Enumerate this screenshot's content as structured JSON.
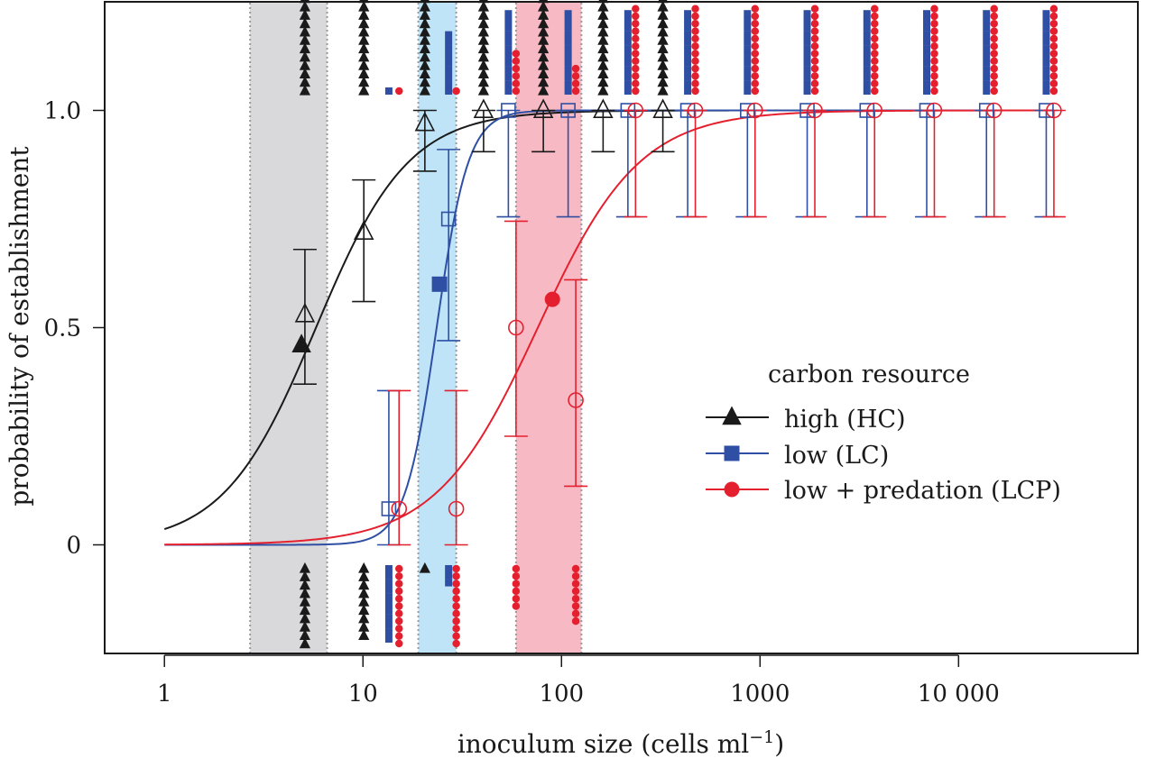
{
  "chart_data": {
    "type": "scatter",
    "xlabel": "inoculum size (cells ml",
    "xlabel_sup": "−1",
    "xlabel_close": ")",
    "ylabel": "probability of establishment",
    "x_scale": "log",
    "xlim": [
      0.5,
      80000
    ],
    "ylim": [
      -0.25,
      1.25
    ],
    "x_ticks": [
      1,
      10,
      100,
      1000,
      10000
    ],
    "x_tick_labels": [
      "1",
      "10",
      "100",
      "1000",
      "10 000"
    ],
    "y_ticks": [
      0,
      0.5,
      1.0
    ],
    "y_tick_labels": [
      "0",
      "0.5",
      "1.0"
    ],
    "grid": false,
    "legend": {
      "title": "carbon resource",
      "placement": "center-right",
      "entries": [
        {
          "key": "HC",
          "label": "high (HC)"
        },
        {
          "key": "LC",
          "label": "low (LC)"
        },
        {
          "key": "LCP",
          "label": "low + predation (LCP)"
        }
      ]
    },
    "series_style": {
      "HC": {
        "color": "#1a1a1a",
        "marker": "triangle"
      },
      "LC": {
        "color": "#2e4fa3",
        "marker": "square"
      },
      "LCP": {
        "color": "#e5202e",
        "marker": "circle"
      }
    },
    "bands": [
      {
        "series": "HC",
        "x_range": [
          2.7,
          6.6
        ],
        "color": "#d9d9db"
      },
      {
        "series": "LC",
        "x_range": [
          19,
          29.5
        ],
        "color": "#bfe4f7"
      },
      {
        "series": "LCP",
        "x_range": [
          59,
          126
        ],
        "color": "#f7b9c3"
      }
    ],
    "series": [
      {
        "key": "HC",
        "curve": {
          "midpoint": 5.8,
          "slope": 4.3
        },
        "ed50": {
          "x": 4.9,
          "y": 0.46
        },
        "points": [
          {
            "x": 5.1,
            "y": 0.53,
            "lo": 0.37,
            "hi": 0.68,
            "n_up": 12,
            "n_down": 10
          },
          {
            "x": 10.1,
            "y": 0.72,
            "lo": 0.56,
            "hi": 0.84,
            "n_up": 12,
            "n_down": 9
          },
          {
            "x": 20.5,
            "y": 0.97,
            "lo": 0.86,
            "hi": 1.0,
            "n_up": 12,
            "n_down": 1
          },
          {
            "x": 40.5,
            "y": 1.0,
            "lo": 0.905,
            "hi": 1.0,
            "n_up": 12,
            "n_down": 0
          },
          {
            "x": 81,
            "y": 1.0,
            "lo": 0.905,
            "hi": 1.0,
            "n_up": 12,
            "n_down": 0
          },
          {
            "x": 162,
            "y": 1.0,
            "lo": 0.905,
            "hi": 1.0,
            "n_up": 12,
            "n_down": 0
          },
          {
            "x": 324,
            "y": 1.0,
            "lo": 0.905,
            "hi": 1.0,
            "n_up": 12,
            "n_down": 0
          }
        ]
      },
      {
        "key": "LC",
        "curve": {
          "midpoint": 23.5,
          "slope": 12.5
        },
        "ed50": {
          "x": 24.3,
          "y": 0.6
        },
        "points": [
          {
            "x": 13.5,
            "y": 0.083,
            "lo": 0.0,
            "hi": 0.355,
            "n_up": 1,
            "n_down": 11
          },
          {
            "x": 27,
            "y": 0.75,
            "lo": 0.47,
            "hi": 0.91,
            "n_up": 9,
            "n_down": 3
          },
          {
            "x": 54,
            "y": 1.0,
            "lo": 0.755,
            "hi": 1.0,
            "n_up": 12,
            "n_down": 0
          },
          {
            "x": 108,
            "y": 1.0,
            "lo": 0.755,
            "hi": 1.0,
            "n_up": 12,
            "n_down": 0
          },
          {
            "x": 216,
            "y": 1.0,
            "lo": 0.755,
            "hi": 1.0,
            "n_up": 12,
            "n_down": 0
          },
          {
            "x": 432,
            "y": 1.0,
            "lo": 0.755,
            "hi": 1.0,
            "n_up": 12,
            "n_down": 0
          },
          {
            "x": 864,
            "y": 1.0,
            "lo": 0.755,
            "hi": 1.0,
            "n_up": 12,
            "n_down": 0
          },
          {
            "x": 1728,
            "y": 1.0,
            "lo": 0.755,
            "hi": 1.0,
            "n_up": 12,
            "n_down": 0
          },
          {
            "x": 3456,
            "y": 1.0,
            "lo": 0.755,
            "hi": 1.0,
            "n_up": 12,
            "n_down": 0
          },
          {
            "x": 6912,
            "y": 1.0,
            "lo": 0.755,
            "hi": 1.0,
            "n_up": 12,
            "n_down": 0
          },
          {
            "x": 13824,
            "y": 1.0,
            "lo": 0.755,
            "hi": 1.0,
            "n_up": 12,
            "n_down": 0
          },
          {
            "x": 27648,
            "y": 1.0,
            "lo": 0.755,
            "hi": 1.0,
            "n_up": 12,
            "n_down": 0
          }
        ]
      },
      {
        "key": "LCP",
        "curve": {
          "midpoint": 76,
          "slope": 3.9
        },
        "ed50": {
          "x": 90,
          "y": 0.565
        },
        "points": [
          {
            "x": 15.2,
            "y": 0.083,
            "lo": 0.0,
            "hi": 0.355,
            "n_up": 1,
            "n_down": 11
          },
          {
            "x": 29.5,
            "y": 0.083,
            "lo": 0.0,
            "hi": 0.355,
            "n_up": 1,
            "n_down": 11
          },
          {
            "x": 59,
            "y": 0.5,
            "lo": 0.25,
            "hi": 0.745,
            "n_up": 6,
            "n_down": 6
          },
          {
            "x": 118,
            "y": 0.333,
            "lo": 0.135,
            "hi": 0.61,
            "n_up": 4,
            "n_down": 8
          },
          {
            "x": 236,
            "y": 1.0,
            "lo": 0.755,
            "hi": 1.0,
            "n_up": 12,
            "n_down": 0
          },
          {
            "x": 472,
            "y": 1.0,
            "lo": 0.755,
            "hi": 1.0,
            "n_up": 12,
            "n_down": 0
          },
          {
            "x": 944,
            "y": 1.0,
            "lo": 0.755,
            "hi": 1.0,
            "n_up": 12,
            "n_down": 0
          },
          {
            "x": 1888,
            "y": 1.0,
            "lo": 0.755,
            "hi": 1.0,
            "n_up": 12,
            "n_down": 0
          },
          {
            "x": 3776,
            "y": 1.0,
            "lo": 0.755,
            "hi": 1.0,
            "n_up": 12,
            "n_down": 0
          },
          {
            "x": 7552,
            "y": 1.0,
            "lo": 0.755,
            "hi": 1.0,
            "n_up": 12,
            "n_down": 0
          },
          {
            "x": 15104,
            "y": 1.0,
            "lo": 0.755,
            "hi": 1.0,
            "n_up": 12,
            "n_down": 0
          },
          {
            "x": 30208,
            "y": 1.0,
            "lo": 0.755,
            "hi": 1.0,
            "n_up": 12,
            "n_down": 0
          }
        ]
      }
    ]
  }
}
